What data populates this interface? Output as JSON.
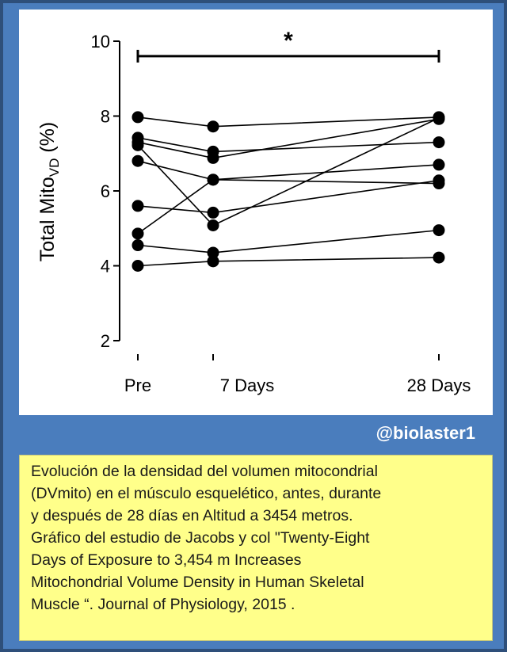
{
  "handle": "@biolaster1",
  "caption_lines": [
    "Evolución de la densidad del volumen mitocondrial",
    "(DVmito) en el músculo esquelético, antes, durante",
    "y después de 28 días en Altitud a 3454 metros.",
    "Gráfico del estudio de Jacobs y col \"Twenty-Eight",
    "Days of Exposure to 3,454 m Increases",
    "Mitochondrial Volume Density in Human Skeletal",
    "Muscle “. Journal of Physiology, 2015 ."
  ],
  "colors": {
    "frame": "#4a7dbd",
    "caption_background": "#ffff8a",
    "marker": "#000000"
  },
  "chart_data": {
    "type": "line",
    "title": "",
    "ylabel_main": "Total Mito",
    "ylabel_sub": "VD",
    "ylabel_unit": "(%)",
    "xlabel": "",
    "categories": [
      "Pre",
      "7 Days",
      "28 Days"
    ],
    "x_days": [
      0,
      7,
      28
    ],
    "ylim": [
      2,
      10
    ],
    "yticks": [
      2,
      4,
      6,
      8,
      10
    ],
    "grid": false,
    "legend": "none",
    "significance": {
      "label": "*",
      "from": "Pre",
      "to": "28 Days",
      "y": 9.6
    },
    "series": [
      {
        "values": [
          7.97,
          7.72,
          7.97
        ]
      },
      {
        "values": [
          7.42,
          7.05,
          7.3
        ]
      },
      {
        "values": [
          7.3,
          6.88,
          7.92
        ]
      },
      {
        "values": [
          6.8,
          6.3,
          6.2
        ]
      },
      {
        "values": [
          5.6,
          5.42,
          6.28
        ]
      },
      {
        "values": [
          7.22,
          5.08,
          7.95
        ]
      },
      {
        "values": [
          4.86,
          6.3,
          6.7
        ]
      },
      {
        "values": [
          4.55,
          4.35,
          4.95
        ]
      },
      {
        "values": [
          4.0,
          4.12,
          4.22
        ]
      }
    ]
  }
}
